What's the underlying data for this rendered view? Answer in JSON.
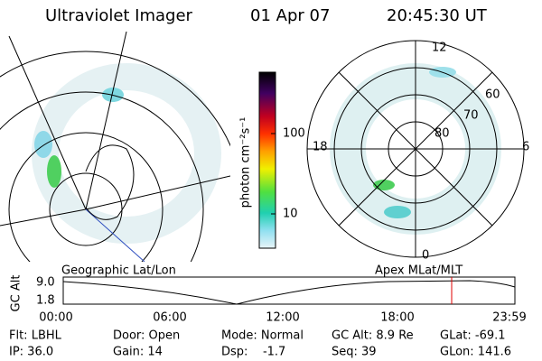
{
  "header": {
    "instrument": "Ultraviolet Imager",
    "date": "01 Apr 07",
    "time": "20:45:30 UT"
  },
  "colorbar": {
    "label": "photon cm⁻²s⁻¹",
    "ticks": [
      "100",
      "10"
    ]
  },
  "polar": {
    "mlt_labels": [
      "12",
      "18",
      "6",
      "0"
    ],
    "mlat_labels": [
      "60",
      "70",
      "80"
    ]
  },
  "timeline": {
    "left_title": "Geographic Lat/Lon",
    "right_title": "Apex MLat/MLT",
    "axis_label": "GC Alt",
    "yticks": [
      "9.0",
      "1.8"
    ],
    "xticks": [
      "00:00",
      "06:00",
      "12:00",
      "18:00",
      "23:59"
    ]
  },
  "footer": {
    "rows": [
      [
        "Flt: LBHL",
        "Door: Open",
        "Mode: Normal",
        "GC Alt: 8.9 Re",
        "GLat: -69.1"
      ],
      [
        "IP: 36.0",
        "Gain: 14",
        "Dsp:    -1.7",
        "Seq: 39",
        "GLon: 141.6"
      ]
    ]
  }
}
